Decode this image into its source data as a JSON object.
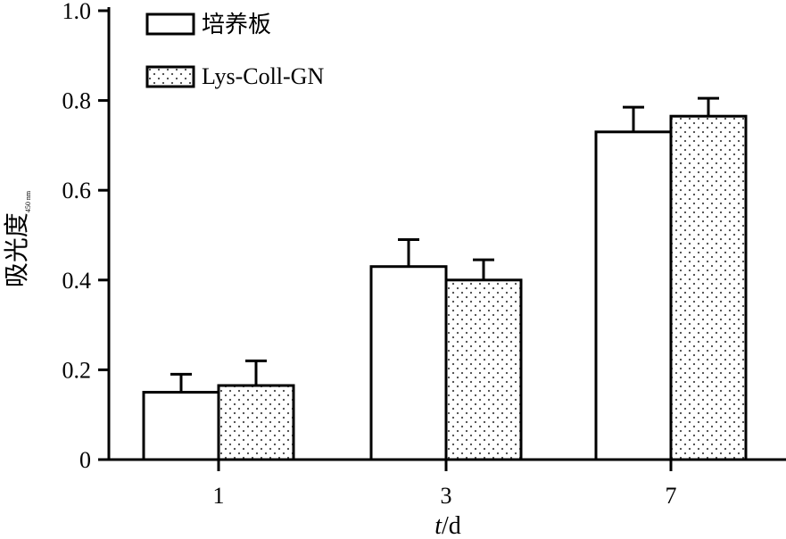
{
  "chart_data": {
    "type": "bar",
    "title": "",
    "xlabel": {
      "italic": "t",
      "rest": "/d"
    },
    "ylabel": {
      "main": "吸光度",
      "subscript": "450 nm"
    },
    "ylim": [
      0,
      1.0
    ],
    "yticks": [
      {
        "value": 0,
        "label": "0"
      },
      {
        "value": 0.2,
        "label": "0.2"
      },
      {
        "value": 0.4,
        "label": "0.4"
      },
      {
        "value": 0.6,
        "label": "0.6"
      },
      {
        "value": 0.8,
        "label": "0.8"
      },
      {
        "value": 1.0,
        "label": "1.0"
      }
    ],
    "categories": [
      "1",
      "3",
      "7"
    ],
    "series": [
      {
        "name": "培养板",
        "pattern": "solid-white",
        "values": [
          0.15,
          0.43,
          0.73
        ],
        "errors": [
          0.04,
          0.06,
          0.055
        ]
      },
      {
        "name": "Lys-Coll-GN",
        "pattern": "dotted",
        "values": [
          0.165,
          0.4,
          0.765
        ],
        "errors": [
          0.055,
          0.045,
          0.04
        ]
      }
    ],
    "legend": "top-left",
    "grid": false
  }
}
